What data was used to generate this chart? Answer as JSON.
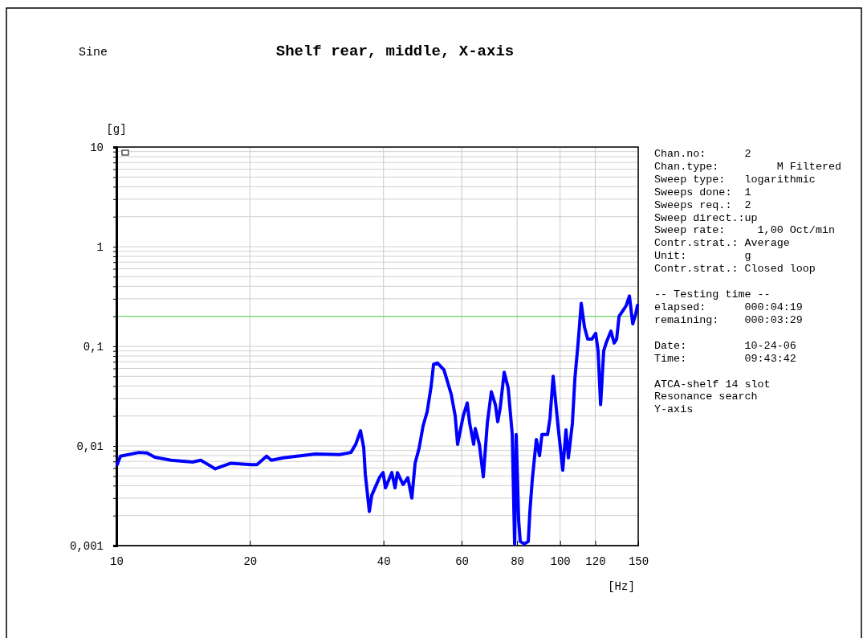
{
  "chart_data": {
    "type": "line",
    "title": "Shelf rear, middle, X-axis",
    "xlabel": "[Hz]",
    "ylabel": "[g]",
    "log": "xy",
    "grid": true,
    "marker": "none",
    "line_style": "solid",
    "xlim": [
      10,
      150
    ],
    "xticks": [
      10,
      20,
      40,
      60,
      80,
      100,
      120,
      150
    ],
    "ylim": [
      0.001,
      10
    ],
    "yticks": [
      {
        "value": 0.001,
        "label": "0,001"
      },
      {
        "value": 0.002,
        "label": null
      },
      {
        "value": 0.003,
        "label": null
      },
      {
        "value": 0.004,
        "label": null
      },
      {
        "value": 0.005,
        "label": null
      },
      {
        "value": 0.006,
        "label": null
      },
      {
        "value": 0.007,
        "label": null
      },
      {
        "value": 0.008,
        "label": null
      },
      {
        "value": 0.009,
        "label": null
      },
      {
        "value": 0.01,
        "label": "0,01"
      },
      {
        "value": 0.02,
        "label": null
      },
      {
        "value": 0.03,
        "label": null
      },
      {
        "value": 0.04,
        "label": null
      },
      {
        "value": 0.05,
        "label": null
      },
      {
        "value": 0.06,
        "label": null
      },
      {
        "value": 0.07,
        "label": null
      },
      {
        "value": 0.08,
        "label": null
      },
      {
        "value": 0.09,
        "label": null
      },
      {
        "value": 0.1,
        "label": "0,1"
      },
      {
        "value": 0.2,
        "label": null
      },
      {
        "value": 0.3,
        "label": null
      },
      {
        "value": 0.4,
        "label": null
      },
      {
        "value": 0.5,
        "label": null
      },
      {
        "value": 0.6,
        "label": null
      },
      {
        "value": 0.7,
        "label": null
      },
      {
        "value": 0.8,
        "label": null
      },
      {
        "value": 0.9,
        "label": null
      },
      {
        "value": 1,
        "label": "1"
      },
      {
        "value": 2,
        "label": null
      },
      {
        "value": 3,
        "label": null
      },
      {
        "value": 4,
        "label": null
      },
      {
        "value": 5,
        "label": null
      },
      {
        "value": 6,
        "label": null
      },
      {
        "value": 7,
        "label": null
      },
      {
        "value": 8,
        "label": null
      },
      {
        "value": 9,
        "label": null
      },
      {
        "value": 10,
        "label": "10"
      }
    ],
    "ref_lines": [
      {
        "axis": "y",
        "value": 0.2,
        "color": "#4cd94c"
      }
    ],
    "series": [
      {
        "color": "#0000ff",
        "x": [
          10.04,
          10.21,
          11.24,
          11.72,
          12.21,
          13.28,
          14.85,
          15.49,
          16.7,
          18.07,
          20.14,
          20.74,
          21.8,
          22.35,
          23.79,
          28.11,
          31.85,
          33.77,
          34.63,
          35.5,
          36.09,
          36.39,
          37.16,
          37.63,
          39.24,
          39.9,
          40.4,
          41.76,
          42.46,
          42.99,
          44.26,
          45.38,
          46.33,
          47.12,
          48.11,
          49.13,
          50.16,
          51.22,
          51.86,
          52.95,
          54.74,
          56.84,
          58.02,
          58.75,
          60.49,
          61.76,
          62.54,
          63.86,
          64.39,
          65.77,
          67.14,
          68.55,
          70.0,
          71.47,
          72.36,
          73.28,
          74.82,
          76.4,
          78.02,
          78.98,
          79.64,
          80.65,
          81.32,
          83.03,
          84.78,
          85.49,
          86.57,
          88.4,
          89.88,
          91.0,
          93.71,
          94.9,
          96.47,
          98.92,
          101.4,
          103.1,
          104.4,
          106.6,
          108.0,
          109.8,
          111.6,
          113.5,
          115.4,
          117.9,
          120.3,
          121.8,
          123.4,
          125.4,
          127.0,
          130.2,
          132.4,
          134.1,
          135.8,
          139.2,
          141.0,
          143.3,
          145.8,
          148.2,
          149.4
        ],
        "values": [
          0.0065,
          0.0079,
          0.0086,
          0.0085,
          0.0077,
          0.0072,
          0.0069,
          0.0072,
          0.0059,
          0.0067,
          0.0065,
          0.0065,
          0.0079,
          0.0072,
          0.0076,
          0.0083,
          0.0082,
          0.0086,
          0.0104,
          0.0142,
          0.0096,
          0.0052,
          0.0022,
          0.0032,
          0.0049,
          0.0054,
          0.0038,
          0.0054,
          0.0038,
          0.0054,
          0.0041,
          0.0048,
          0.003,
          0.0067,
          0.0095,
          0.016,
          0.022,
          0.04,
          0.066,
          0.068,
          0.058,
          0.033,
          0.02,
          0.0104,
          0.02,
          0.027,
          0.017,
          0.0104,
          0.015,
          0.0104,
          0.0049,
          0.017,
          0.035,
          0.026,
          0.0175,
          0.024,
          0.055,
          0.038,
          0.013,
          0.00104,
          0.013,
          0.0018,
          0.0011,
          0.00104,
          0.0011,
          0.0022,
          0.0046,
          0.0116,
          0.008,
          0.013,
          0.013,
          0.019,
          0.05,
          0.016,
          0.0057,
          0.0145,
          0.0076,
          0.017,
          0.048,
          0.108,
          0.27,
          0.156,
          0.118,
          0.118,
          0.135,
          0.09,
          0.026,
          0.09,
          0.108,
          0.142,
          0.108,
          0.118,
          0.2,
          0.235,
          0.258,
          0.32,
          0.168,
          0.214,
          0.258
        ]
      }
    ],
    "annotations": [
      "Sine",
      "Chan.no:      2\nChan.type:         M Filtered\nSweep type:   logarithmic\nSweeps done:  1\nSweeps req.:  2\nSweep direct.:up\nSweep rate:     1,00 Oct/min\nContr.strat.: Average\nUnit:         g\nContr.strat.: Closed loop",
      "-- Testing time --\nelapsed:      000:04:19\nremaining:    000:03:29",
      "Date:         10-24-06\nTime:         09:43:42",
      "ATCA-shelf 14 slot\nResonance search\nY-axis"
    ]
  }
}
